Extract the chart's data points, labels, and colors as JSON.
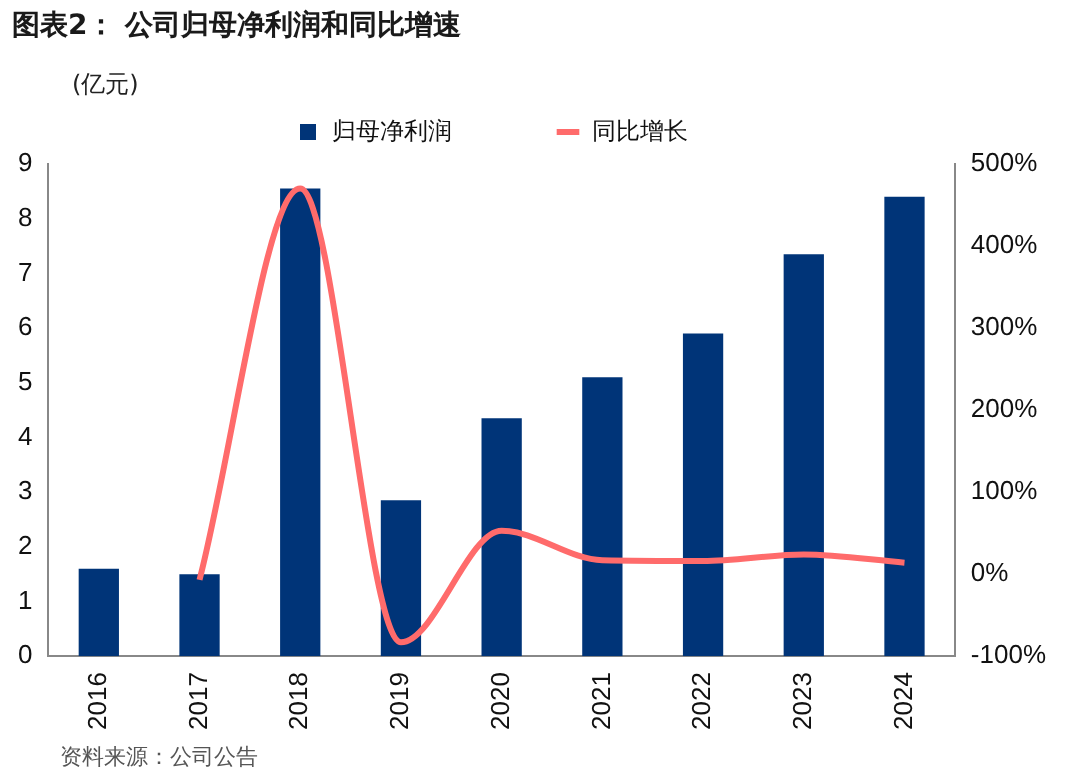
{
  "chart_data": {
    "type": "bar",
    "title": "图表2：  公司归母净利润和同比增速",
    "categories": [
      "2016",
      "2017",
      "2018",
      "2019",
      "2020",
      "2021",
      "2022",
      "2023",
      "2024"
    ],
    "series": [
      {
        "name": "归母净利润",
        "color": "#003478",
        "values": [
          1.6,
          1.5,
          8.55,
          2.85,
          4.35,
          5.1,
          5.9,
          7.35,
          8.4
        ]
      },
      {
        "name": "同比增长",
        "type": "line",
        "axis": "y2",
        "color": "#ff6b6b",
        "values": [
          null,
          -7,
          470,
          -83,
          53,
          17,
          16,
          24,
          14
        ]
      }
    ],
    "ylim": [
      0,
      9
    ],
    "yticks": [
      0,
      1,
      2,
      3,
      4,
      5,
      6,
      7,
      8,
      9
    ],
    "y2lim": [
      -100,
      500
    ],
    "y2ticks": [
      {
        "value": -100,
        "label": "-100%"
      },
      {
        "value": 0,
        "label": "0%"
      },
      {
        "value": 100,
        "label": "100%"
      },
      {
        "value": 200,
        "label": "200%"
      },
      {
        "value": 300,
        "label": "300%"
      },
      {
        "value": 400,
        "label": "400%"
      },
      {
        "value": 500,
        "label": "500%"
      }
    ],
    "grid": false,
    "legend": "top",
    "marker": "none",
    "annotations": [
      "(亿元)",
      "资料来源：公司公告"
    ]
  }
}
